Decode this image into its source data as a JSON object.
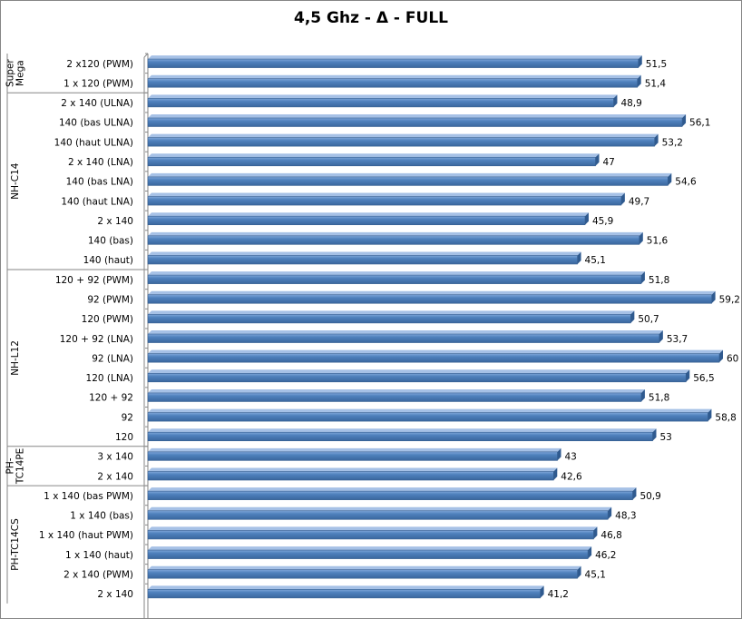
{
  "chart_data": {
    "type": "bar",
    "orientation": "horizontal",
    "title": "4,5 Ghz - Δ - FULL",
    "xlabel": "",
    "ylabel": "",
    "xlim": [
      0,
      60
    ],
    "grid": false,
    "legend": "none",
    "bar_color": "#4a7ebb",
    "groups": [
      {
        "name": "Super Mega",
        "label_lines": [
          "Super",
          "Mega"
        ],
        "categories": [
          {
            "label": "2 x120 (PWM)",
            "value": 51.5,
            "value_label": "51,5"
          },
          {
            "label": "1 x 120 (PWM)",
            "value": 51.4,
            "value_label": "51,4"
          }
        ]
      },
      {
        "name": "NH-C14",
        "label_lines": [
          "NH-C14"
        ],
        "categories": [
          {
            "label": "2 x 140 (ULNA)",
            "value": 48.9,
            "value_label": "48,9"
          },
          {
            "label": "140 (bas ULNA)",
            "value": 56.1,
            "value_label": "56,1"
          },
          {
            "label": "140 (haut ULNA)",
            "value": 53.2,
            "value_label": "53,2"
          },
          {
            "label": "2 x 140 (LNA)",
            "value": 47,
            "value_label": "47"
          },
          {
            "label": "140 (bas LNA)",
            "value": 54.6,
            "value_label": "54,6"
          },
          {
            "label": "140 (haut LNA)",
            "value": 49.7,
            "value_label": "49,7"
          },
          {
            "label": "2 x 140",
            "value": 45.9,
            "value_label": "45,9"
          },
          {
            "label": "140 (bas)",
            "value": 51.6,
            "value_label": "51,6"
          },
          {
            "label": "140 (haut)",
            "value": 45.1,
            "value_label": "45,1"
          }
        ]
      },
      {
        "name": "NH-L12",
        "label_lines": [
          "NH-L12"
        ],
        "categories": [
          {
            "label": "120 + 92 (PWM)",
            "value": 51.8,
            "value_label": "51,8"
          },
          {
            "label": "92 (PWM)",
            "value": 59.2,
            "value_label": "59,2"
          },
          {
            "label": "120 (PWM)",
            "value": 50.7,
            "value_label": "50,7"
          },
          {
            "label": "120 + 92 (LNA)",
            "value": 53.7,
            "value_label": "53,7"
          },
          {
            "label": "92 (LNA)",
            "value": 60,
            "value_label": "60"
          },
          {
            "label": "120 (LNA)",
            "value": 56.5,
            "value_label": "56,5"
          },
          {
            "label": "120 + 92",
            "value": 51.8,
            "value_label": "51,8"
          },
          {
            "label": "92",
            "value": 58.8,
            "value_label": "58,8"
          },
          {
            "label": "120",
            "value": 53,
            "value_label": "53"
          }
        ]
      },
      {
        "name": "PH-TC14PE",
        "label_lines": [
          "PH-",
          "TC14PE"
        ],
        "categories": [
          {
            "label": "3 x 140",
            "value": 43,
            "value_label": "43"
          },
          {
            "label": "2 x 140",
            "value": 42.6,
            "value_label": "42,6"
          }
        ]
      },
      {
        "name": "PH-TC14CS",
        "label_lines": [
          "PH-TC14CS"
        ],
        "categories": [
          {
            "label": "1 x 140 (bas PWM)",
            "value": 50.9,
            "value_label": "50,9"
          },
          {
            "label": "1 x 140 (bas)",
            "value": 48.3,
            "value_label": "48,3"
          },
          {
            "label": "1 x 140 (haut PWM)",
            "value": 46.8,
            "value_label": "46,8"
          },
          {
            "label": "1 x 140 (haut)",
            "value": 46.2,
            "value_label": "46,2"
          },
          {
            "label": "2 x 140 (PWM)",
            "value": 45.1,
            "value_label": "45,1"
          },
          {
            "label": "2 x 140",
            "value": 41.2,
            "value_label": "41,2"
          }
        ]
      }
    ]
  }
}
